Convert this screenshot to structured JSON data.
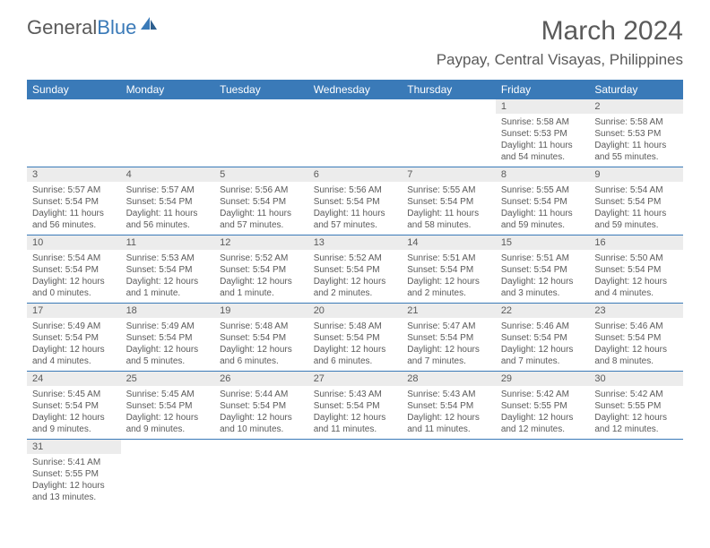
{
  "logo": {
    "text_general": "General",
    "text_blue": "Blue",
    "icon_color": "#3a7ab8"
  },
  "header": {
    "month_title": "March 2024",
    "location": "Paypay, Central Visayas, Philippines"
  },
  "styling": {
    "header_bg": "#3a7ab8",
    "header_text": "#ffffff",
    "daynum_bg": "#ececec",
    "text_color": "#5a5a5a",
    "border_color": "#3a7ab8",
    "font_family": "Arial",
    "th_fontsize": 12,
    "cell_fontsize": 10,
    "title_fontsize": 30,
    "location_fontsize": 17
  },
  "weekdays": [
    "Sunday",
    "Monday",
    "Tuesday",
    "Wednesday",
    "Thursday",
    "Friday",
    "Saturday"
  ],
  "weeks": [
    [
      null,
      null,
      null,
      null,
      null,
      {
        "day": "1",
        "sunrise": "Sunrise: 5:58 AM",
        "sunset": "Sunset: 5:53 PM",
        "daylight": "Daylight: 11 hours and 54 minutes."
      },
      {
        "day": "2",
        "sunrise": "Sunrise: 5:58 AM",
        "sunset": "Sunset: 5:53 PM",
        "daylight": "Daylight: 11 hours and 55 minutes."
      }
    ],
    [
      {
        "day": "3",
        "sunrise": "Sunrise: 5:57 AM",
        "sunset": "Sunset: 5:54 PM",
        "daylight": "Daylight: 11 hours and 56 minutes."
      },
      {
        "day": "4",
        "sunrise": "Sunrise: 5:57 AM",
        "sunset": "Sunset: 5:54 PM",
        "daylight": "Daylight: 11 hours and 56 minutes."
      },
      {
        "day": "5",
        "sunrise": "Sunrise: 5:56 AM",
        "sunset": "Sunset: 5:54 PM",
        "daylight": "Daylight: 11 hours and 57 minutes."
      },
      {
        "day": "6",
        "sunrise": "Sunrise: 5:56 AM",
        "sunset": "Sunset: 5:54 PM",
        "daylight": "Daylight: 11 hours and 57 minutes."
      },
      {
        "day": "7",
        "sunrise": "Sunrise: 5:55 AM",
        "sunset": "Sunset: 5:54 PM",
        "daylight": "Daylight: 11 hours and 58 minutes."
      },
      {
        "day": "8",
        "sunrise": "Sunrise: 5:55 AM",
        "sunset": "Sunset: 5:54 PM",
        "daylight": "Daylight: 11 hours and 59 minutes."
      },
      {
        "day": "9",
        "sunrise": "Sunrise: 5:54 AM",
        "sunset": "Sunset: 5:54 PM",
        "daylight": "Daylight: 11 hours and 59 minutes."
      }
    ],
    [
      {
        "day": "10",
        "sunrise": "Sunrise: 5:54 AM",
        "sunset": "Sunset: 5:54 PM",
        "daylight": "Daylight: 12 hours and 0 minutes."
      },
      {
        "day": "11",
        "sunrise": "Sunrise: 5:53 AM",
        "sunset": "Sunset: 5:54 PM",
        "daylight": "Daylight: 12 hours and 1 minute."
      },
      {
        "day": "12",
        "sunrise": "Sunrise: 5:52 AM",
        "sunset": "Sunset: 5:54 PM",
        "daylight": "Daylight: 12 hours and 1 minute."
      },
      {
        "day": "13",
        "sunrise": "Sunrise: 5:52 AM",
        "sunset": "Sunset: 5:54 PM",
        "daylight": "Daylight: 12 hours and 2 minutes."
      },
      {
        "day": "14",
        "sunrise": "Sunrise: 5:51 AM",
        "sunset": "Sunset: 5:54 PM",
        "daylight": "Daylight: 12 hours and 2 minutes."
      },
      {
        "day": "15",
        "sunrise": "Sunrise: 5:51 AM",
        "sunset": "Sunset: 5:54 PM",
        "daylight": "Daylight: 12 hours and 3 minutes."
      },
      {
        "day": "16",
        "sunrise": "Sunrise: 5:50 AM",
        "sunset": "Sunset: 5:54 PM",
        "daylight": "Daylight: 12 hours and 4 minutes."
      }
    ],
    [
      {
        "day": "17",
        "sunrise": "Sunrise: 5:49 AM",
        "sunset": "Sunset: 5:54 PM",
        "daylight": "Daylight: 12 hours and 4 minutes."
      },
      {
        "day": "18",
        "sunrise": "Sunrise: 5:49 AM",
        "sunset": "Sunset: 5:54 PM",
        "daylight": "Daylight: 12 hours and 5 minutes."
      },
      {
        "day": "19",
        "sunrise": "Sunrise: 5:48 AM",
        "sunset": "Sunset: 5:54 PM",
        "daylight": "Daylight: 12 hours and 6 minutes."
      },
      {
        "day": "20",
        "sunrise": "Sunrise: 5:48 AM",
        "sunset": "Sunset: 5:54 PM",
        "daylight": "Daylight: 12 hours and 6 minutes."
      },
      {
        "day": "21",
        "sunrise": "Sunrise: 5:47 AM",
        "sunset": "Sunset: 5:54 PM",
        "daylight": "Daylight: 12 hours and 7 minutes."
      },
      {
        "day": "22",
        "sunrise": "Sunrise: 5:46 AM",
        "sunset": "Sunset: 5:54 PM",
        "daylight": "Daylight: 12 hours and 7 minutes."
      },
      {
        "day": "23",
        "sunrise": "Sunrise: 5:46 AM",
        "sunset": "Sunset: 5:54 PM",
        "daylight": "Daylight: 12 hours and 8 minutes."
      }
    ],
    [
      {
        "day": "24",
        "sunrise": "Sunrise: 5:45 AM",
        "sunset": "Sunset: 5:54 PM",
        "daylight": "Daylight: 12 hours and 9 minutes."
      },
      {
        "day": "25",
        "sunrise": "Sunrise: 5:45 AM",
        "sunset": "Sunset: 5:54 PM",
        "daylight": "Daylight: 12 hours and 9 minutes."
      },
      {
        "day": "26",
        "sunrise": "Sunrise: 5:44 AM",
        "sunset": "Sunset: 5:54 PM",
        "daylight": "Daylight: 12 hours and 10 minutes."
      },
      {
        "day": "27",
        "sunrise": "Sunrise: 5:43 AM",
        "sunset": "Sunset: 5:54 PM",
        "daylight": "Daylight: 12 hours and 11 minutes."
      },
      {
        "day": "28",
        "sunrise": "Sunrise: 5:43 AM",
        "sunset": "Sunset: 5:54 PM",
        "daylight": "Daylight: 12 hours and 11 minutes."
      },
      {
        "day": "29",
        "sunrise": "Sunrise: 5:42 AM",
        "sunset": "Sunset: 5:55 PM",
        "daylight": "Daylight: 12 hours and 12 minutes."
      },
      {
        "day": "30",
        "sunrise": "Sunrise: 5:42 AM",
        "sunset": "Sunset: 5:55 PM",
        "daylight": "Daylight: 12 hours and 12 minutes."
      }
    ],
    [
      {
        "day": "31",
        "sunrise": "Sunrise: 5:41 AM",
        "sunset": "Sunset: 5:55 PM",
        "daylight": "Daylight: 12 hours and 13 minutes."
      },
      null,
      null,
      null,
      null,
      null,
      null
    ]
  ]
}
